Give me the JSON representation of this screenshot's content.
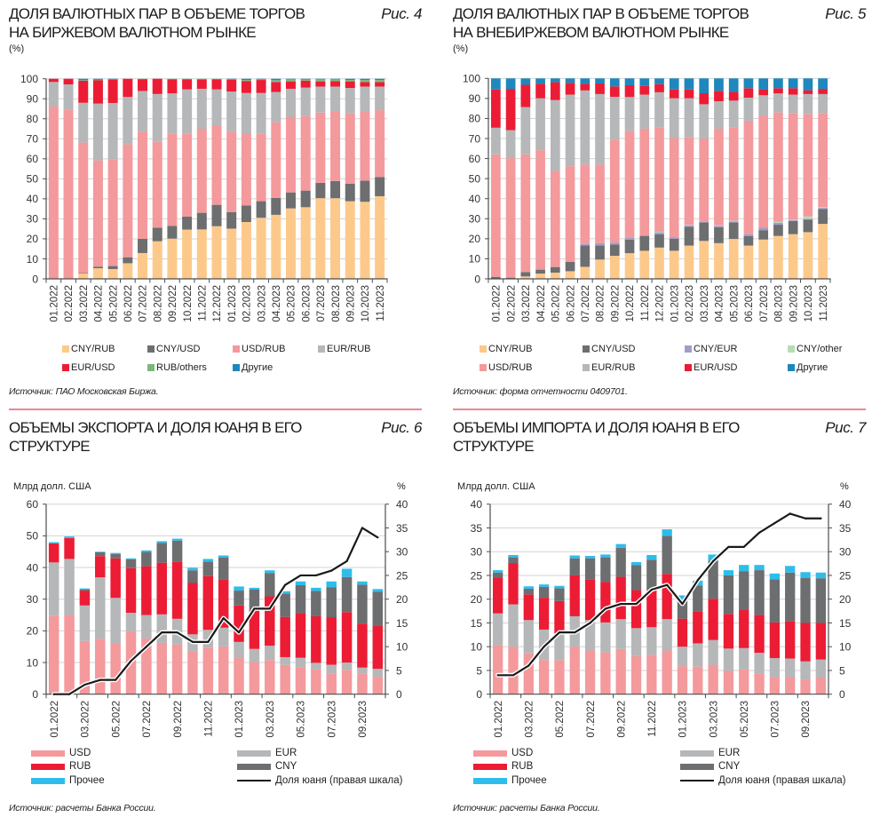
{
  "chart_data": [
    {
      "type": "bar",
      "stacked": true,
      "fig_label": "Рис. 4",
      "title": [
        "ДОЛЯ ВАЛЮТНЫХ ПАР В ОБЪЕМЕ ТОРГОВ",
        "НА БИРЖЕВОМ ВАЛЮТНОМ РЫНКЕ"
      ],
      "ylabel": "(%)",
      "xlabel": "",
      "ylim": [
        0,
        100
      ],
      "yticks": [
        0,
        10,
        20,
        30,
        40,
        50,
        60,
        70,
        80,
        90,
        100
      ],
      "grid": true,
      "legend_placement": "bottom",
      "categories": [
        "01.2022",
        "02.2022",
        "03.2022",
        "04.2022",
        "05.2022",
        "06.2022",
        "07.2022",
        "08.2022",
        "09.2022",
        "10.2022",
        "11.2022",
        "12.2022",
        "01.2023",
        "02.2023",
        "03.2023",
        "04.2023",
        "05.2023",
        "06.2023",
        "07.2023",
        "08.2023",
        "09.2023",
        "10.2023",
        "11.2023"
      ],
      "series": [
        {
          "name": "CNY/RUB",
          "color": "#FDC98A",
          "values": [
            0,
            0,
            2.9,
            5.3,
            4.9,
            7.8,
            12.9,
            18.8,
            20.1,
            24.6,
            24.7,
            26.3,
            25.1,
            28.4,
            30.5,
            32.0,
            35.2,
            35.8,
            40.3,
            40.3,
            38.8,
            38.5,
            41.3
          ]
        },
        {
          "name": "CNY/USD",
          "color": "#6D6E70",
          "values": [
            0,
            0,
            0.2,
            0.8,
            1.5,
            3.0,
            7.1,
            6.8,
            6.4,
            6.5,
            8.3,
            10.7,
            8.3,
            8.3,
            8.3,
            8.4,
            8.0,
            8.3,
            7.7,
            8.6,
            8.8,
            10.6,
            9.6
          ]
        },
        {
          "name": "USD/RUB",
          "color": "#F4999C",
          "values": [
            86.1,
            84.6,
            65.0,
            53.1,
            53.1,
            56.4,
            53.5,
            43.1,
            46.0,
            41.4,
            42.0,
            39.8,
            40.1,
            36.1,
            33.7,
            37.9,
            37.8,
            37.3,
            35.1,
            35.0,
            35.1,
            34.8,
            33.4
          ]
        },
        {
          "name": "EUR/RUB",
          "color": "#B6B7B9",
          "values": [
            12.3,
            12.6,
            19.9,
            28.4,
            28.4,
            23.7,
            20.4,
            23.7,
            20.2,
            22.2,
            20.0,
            17.9,
            20.1,
            20.1,
            20.4,
            15.1,
            14.0,
            14.2,
            13.0,
            12.2,
            12.7,
            12.2,
            11.8
          ]
        },
        {
          "name": "EUR/USD",
          "color": "#EC1C35",
          "values": [
            1.6,
            2.8,
            11.1,
            11.8,
            11.8,
            9.1,
            6.0,
            7.6,
            7.1,
            5.1,
            4.7,
            5.1,
            6.0,
            6.0,
            6.5,
            5.0,
            3.7,
            3.5,
            2.6,
            2.7,
            3.3,
            2.3,
            2.3
          ]
        },
        {
          "name": "RUB/others",
          "color": "#7DB77B",
          "values": [
            0,
            0,
            0.2,
            0.1,
            0.1,
            0,
            0.1,
            0,
            0.2,
            0.2,
            0.3,
            0.2,
            0.2,
            0.5,
            0.4,
            0.9,
            1.0,
            0.5,
            1.0,
            0.9,
            0.7,
            1.0,
            1.0
          ]
        },
        {
          "name": "Другие",
          "color": "#1E87BD",
          "values": [
            0,
            0,
            0.7,
            0.5,
            0.2,
            0,
            0,
            0,
            0,
            0,
            0,
            0,
            0.2,
            0.6,
            0.2,
            0.7,
            0.3,
            0.4,
            0.3,
            0.3,
            0.6,
            0.6,
            0.6
          ]
        }
      ],
      "source": "Источник: ПАО Московская Биржа."
    },
    {
      "type": "bar",
      "stacked": true,
      "fig_label": "Рис. 5",
      "title": [
        "ДОЛЯ ВАЛЮТНЫХ ПАР В ОБЪЕМЕ ТОРГОВ",
        "НА ВНЕБИРЖЕВОМ ВАЛЮТНОМ РЫНКЕ"
      ],
      "ylabel": "(%)",
      "xlabel": "",
      "ylim": [
        0,
        100
      ],
      "yticks": [
        0,
        10,
        20,
        30,
        40,
        50,
        60,
        70,
        80,
        90,
        100
      ],
      "grid": true,
      "legend_placement": "bottom",
      "categories": [
        "01.2022",
        "02.2022",
        "03.2022",
        "04.2022",
        "05.2022",
        "06.2022",
        "07.2022",
        "08.2022",
        "09.2022",
        "10.2022",
        "11.2022",
        "12.2022",
        "01.2023",
        "02.2023",
        "03.2023",
        "04.2023",
        "05.2023",
        "06.2023",
        "07.2023",
        "08.2023",
        "09.2023",
        "10.2023",
        "11.2023"
      ],
      "series": [
        {
          "name": "CNY/RUB",
          "color": "#FDC98A",
          "values": [
            0,
            0,
            1.2,
            2.6,
            3.1,
            3.8,
            6.0,
            9.6,
            11.5,
            12.8,
            14.0,
            15.6,
            14.0,
            16.6,
            18.9,
            17.8,
            19.9,
            16.6,
            19.6,
            21.4,
            22.3,
            23.3,
            27.4
          ]
        },
        {
          "name": "CNY/USD",
          "color": "#6D6E70",
          "values": [
            1.0,
            0.6,
            2.2,
            2.0,
            2.8,
            4.7,
            10.7,
            7.1,
            5.6,
            6.8,
            7.4,
            6.7,
            6.0,
            9.3,
            9.2,
            8.0,
            8.2,
            4.8,
            4.7,
            5.6,
            6.5,
            6.3,
            7.4
          ]
        },
        {
          "name": "CNY/EUR",
          "color": "#A19CC9",
          "values": [
            0,
            0,
            0,
            0,
            0,
            0.3,
            0.7,
            1.1,
            1.0,
            0.8,
            0.3,
            0.9,
            0.6,
            0.8,
            0.3,
            0.7,
            0.6,
            0.9,
            1.2,
            1.0,
            0.4,
            0.3,
            0.6
          ]
        },
        {
          "name": "CNY/other",
          "color": "#B8DCB6",
          "values": [
            0,
            0,
            0,
            0,
            0,
            0,
            0,
            0,
            0,
            0,
            0,
            0.3,
            0,
            0.3,
            0,
            0.2,
            0.3,
            0,
            0,
            0.4,
            0.3,
            1.2,
            0.4
          ]
        },
        {
          "name": "USD/RUB",
          "color": "#F4999C",
          "values": [
            61.1,
            59.6,
            58.7,
            59.6,
            47.9,
            47.4,
            39.6,
            39.2,
            51.4,
            53.3,
            53.2,
            51.9,
            49.6,
            43.8,
            41.4,
            48.2,
            46.6,
            56.6,
            56.0,
            54.6,
            53.2,
            51.2,
            46.9
          ]
        },
        {
          "name": "EUR/RUB",
          "color": "#B6B7B9",
          "values": [
            13.3,
            14.0,
            23.6,
            25.9,
            35.4,
            35.7,
            37.0,
            35.2,
            21.3,
            17.0,
            17.0,
            17.7,
            19.9,
            19.3,
            17.3,
            13.7,
            13.3,
            11.5,
            10.1,
            9.5,
            9.2,
            9.9,
            9.5
          ]
        },
        {
          "name": "EUR/USD",
          "color": "#EC1C35",
          "values": [
            19.1,
            20.6,
            11.1,
            7.2,
            8.9,
            5.9,
            3.3,
            5.3,
            5.2,
            5.9,
            4.4,
            4.0,
            4.4,
            4.4,
            5.5,
            5.2,
            4.4,
            4.7,
            2.8,
            2.6,
            3.2,
            1.9,
            2.6
          ]
        },
        {
          "name": "Другие",
          "color": "#1E87BD",
          "values": [
            5.5,
            5.2,
            3.2,
            2.7,
            1.9,
            2.2,
            2.7,
            2.5,
            4.0,
            3.4,
            3.7,
            2.9,
            5.5,
            5.5,
            7.4,
            6.2,
            6.7,
            4.9,
            5.6,
            4.9,
            4.9,
            5.9,
            5.2
          ]
        }
      ],
      "source": "Источник: форма отчетности 0409701."
    },
    {
      "type": "bar",
      "stacked": true,
      "fig_label": "Рис. 6",
      "title": [
        "ОБЪЕМЫ ЭКСПОРТА И ДОЛЯ ЮАНЯ В ЕГО",
        "СТРУКТУРЕ"
      ],
      "ylabel": "Млрд долл. США",
      "y2label": "%",
      "xlabel": "",
      "ylim": [
        0,
        60
      ],
      "yticks": [
        0,
        10,
        20,
        30,
        40,
        50,
        60
      ],
      "y2lim": [
        0,
        40
      ],
      "y2ticks": [
        0,
        5,
        10,
        15,
        20,
        25,
        30,
        35,
        40
      ],
      "grid": true,
      "legend_placement": "bottom",
      "x": [
        "01.2022",
        "02.2022",
        "03.2022",
        "04.2022",
        "05.2022",
        "06.2022",
        "07.2022",
        "08.2022",
        "09.2022",
        "10.2022",
        "11.2022",
        "12.2022",
        "01.2023",
        "02.2023",
        "03.2023",
        "04.2023",
        "05.2023",
        "06.2023",
        "07.2023",
        "08.2023",
        "09.2023",
        "10.2023"
      ],
      "xtick_labels": [
        "01.2022",
        "03.2022",
        "05.2022",
        "07.2022",
        "09.2022",
        "11.2022",
        "01.2023",
        "03.2023",
        "05.2023",
        "07.2023",
        "09.2023"
      ],
      "series": [
        {
          "name": "USD",
          "color": "#F4999C",
          "values": [
            24.8,
            25.0,
            16.8,
            17.5,
            15.9,
            19.8,
            17.6,
            16.2,
            15.7,
            13.4,
            14.7,
            15.1,
            11.4,
            10.1,
            10.8,
            9.2,
            8.5,
            7.8,
            6.6,
            7.7,
            6.4,
            5.4
          ]
        },
        {
          "name": "EUR",
          "color": "#B6B7B9",
          "values": [
            16.8,
            17.7,
            11.2,
            19.4,
            14.5,
            5.9,
            7.4,
            9.0,
            8.1,
            5.5,
            5.6,
            5.9,
            5.1,
            4.2,
            4.5,
            2.5,
            3.0,
            2.1,
            2.7,
            2.3,
            2.0,
            2.6
          ]
        },
        {
          "name": "RUB",
          "color": "#EC1C35",
          "values": [
            6.0,
            6.6,
            4.7,
            6.7,
            12.5,
            14.1,
            15.4,
            16.3,
            18.1,
            16.2,
            17.0,
            15.3,
            11.5,
            12.3,
            15.6,
            12.7,
            14.1,
            14.7,
            15.0,
            15.9,
            13.9,
            13.5
          ]
        },
        {
          "name": "CNY",
          "color": "#6D6E70",
          "values": [
            0,
            0,
            0.3,
            1.2,
            1.4,
            2.8,
            4.5,
            6.3,
            6.6,
            4.0,
            4.6,
            6.8,
            4.7,
            6.4,
            7.3,
            7.4,
            8.8,
            8.0,
            9.4,
            11.1,
            12.3,
            10.8
          ]
        },
        {
          "name": "Прочее",
          "color": "#2EBDEB",
          "values": [
            0.4,
            0.5,
            0.4,
            0.2,
            0.3,
            0.3,
            0.5,
            0.5,
            0.6,
            0.8,
            0.8,
            0.7,
            1.3,
            0.6,
            0.9,
            0.7,
            1.2,
            1.0,
            1.9,
            2.6,
            1.0,
            0.9
          ]
        }
      ],
      "line": {
        "name": "Доля юаня (правая шкала)",
        "axis": "right",
        "color": "#1A1A1A",
        "values": [
          0,
          0,
          2,
          3,
          3,
          7,
          10,
          13,
          13,
          11,
          11,
          16,
          13,
          18,
          18,
          23,
          25,
          25,
          26,
          28,
          35,
          33
        ]
      },
      "source": "Источник: расчеты Банка России."
    },
    {
      "type": "bar",
      "stacked": true,
      "fig_label": "Рис. 7",
      "title": [
        "ОБЪЕМЫ ИМПОРТА И ДОЛЯ ЮАНЯ В ЕГО",
        "СТРУКТУРЕ"
      ],
      "ylabel": "Млрд долл. США",
      "y2label": "%",
      "xlabel": "",
      "ylim": [
        0,
        40
      ],
      "yticks": [
        0,
        5,
        10,
        15,
        20,
        25,
        30,
        35,
        40
      ],
      "y2lim": [
        0,
        40
      ],
      "y2ticks": [
        0,
        5,
        10,
        15,
        20,
        25,
        30,
        35,
        40
      ],
      "grid": true,
      "legend_placement": "bottom",
      "x": [
        "01.2022",
        "02.2022",
        "03.2022",
        "04.2022",
        "05.2022",
        "06.2022",
        "07.2022",
        "08.2022",
        "09.2022",
        "10.2022",
        "11.2022",
        "12.2022",
        "01.2023",
        "02.2023",
        "03.2023",
        "04.2023",
        "05.2023",
        "06.2023",
        "07.2023",
        "08.2023",
        "09.2023",
        "10.2023"
      ],
      "xtick_labels": [
        "01.2022",
        "03.2022",
        "05.2022",
        "07.2022",
        "09.2022",
        "11.2022",
        "01.2023",
        "03.2023",
        "05.2023",
        "07.2023",
        "09.2023"
      ],
      "series": [
        {
          "name": "USD",
          "color": "#F4999C",
          "values": [
            10.3,
            10.0,
            8.6,
            7.2,
            7.2,
            10.0,
            9.2,
            8.8,
            9.5,
            8.0,
            8.3,
            9.2,
            5.9,
            5.8,
            6.2,
            4.9,
            5.2,
            4.4,
            3.6,
            3.6,
            3.1,
            3.4
          ]
        },
        {
          "name": "EUR",
          "color": "#B6B7B9",
          "values": [
            6.7,
            8.9,
            7.0,
            6.4,
            5.6,
            6.4,
            6.4,
            6.3,
            6.3,
            5.9,
            5.8,
            6.6,
            4.1,
            4.9,
            5.2,
            4.7,
            4.5,
            4.3,
            4.0,
            3.9,
            3.8,
            3.9
          ]
        },
        {
          "name": "RUB",
          "color": "#EC1C35",
          "values": [
            7.6,
            8.7,
            5.4,
            6.7,
            6.8,
            8.6,
            8.6,
            8.5,
            8.9,
            8.0,
            7.8,
            9.5,
            5.9,
            6.7,
            8.7,
            7.3,
            8.0,
            8.0,
            7.5,
            7.9,
            8.1,
            7.7
          ]
        },
        {
          "name": "CNY",
          "color": "#6D6E70",
          "values": [
            1.0,
            1.2,
            1.2,
            2.3,
            2.7,
            3.6,
            4.4,
            5.2,
            6.1,
            5.3,
            6.4,
            8.0,
            3.8,
            5.5,
            8.0,
            8.1,
            8.2,
            9.4,
            9.1,
            10.2,
            9.5,
            9.4
          ]
        },
        {
          "name": "Прочее",
          "color": "#2EBDEB",
          "values": [
            0.5,
            0.5,
            0.5,
            0.5,
            0.5,
            0.6,
            0.5,
            0.6,
            0.8,
            0.6,
            1.0,
            1.4,
            1.1,
            1.0,
            1.3,
            1.1,
            1.3,
            1.1,
            1.2,
            1.4,
            1.2,
            1.2
          ]
        }
      ],
      "line": {
        "name": "Доля юаня (правая шкала)",
        "axis": "right",
        "color": "#1A1A1A",
        "values": [
          4,
          4,
          6,
          10,
          13,
          13,
          15,
          18,
          19,
          19,
          22,
          23,
          19,
          24,
          28,
          31,
          31,
          34,
          36,
          38,
          37,
          37
        ]
      },
      "source": "Источник: расчеты Банка России."
    }
  ],
  "separator_color": "#E98892"
}
